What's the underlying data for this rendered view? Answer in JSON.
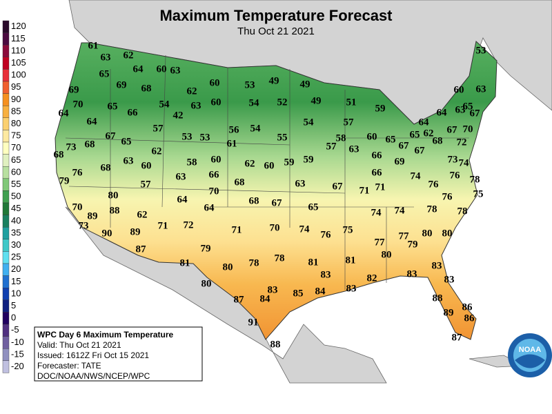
{
  "header": {
    "title": "Maximum Temperature Forecast",
    "subtitle": "Thu Oct 21 2021"
  },
  "legend": {
    "labels": [
      120,
      115,
      110,
      105,
      100,
      95,
      90,
      85,
      80,
      75,
      70,
      65,
      60,
      55,
      50,
      45,
      40,
      35,
      30,
      25,
      20,
      15,
      10,
      5,
      0,
      -5,
      -10,
      -15,
      -20
    ],
    "colors": [
      "#2a0a2a",
      "#4b0a40",
      "#8b0a3a",
      "#c00020",
      "#e8303a",
      "#f06030",
      "#f59020",
      "#f8b040",
      "#fbd070",
      "#fde9a0",
      "#ffffc0",
      "#e0f0c0",
      "#b8e0a0",
      "#80c878",
      "#40a050",
      "#207838",
      "#1a8060",
      "#20a0a0",
      "#40c8c8",
      "#60e0f0",
      "#40b0f0",
      "#2070d0",
      "#1040b0",
      "#102080",
      "#200060",
      "#503080",
      "#7060a0",
      "#9090c0",
      "#c0c0e0"
    ]
  },
  "map": {
    "temperatures": [
      61,
      63,
      62,
      53,
      64,
      60,
      63,
      65,
      49,
      53,
      49,
      69,
      69,
      68,
      62,
      60,
      60,
      63,
      70,
      65,
      54,
      63,
      60,
      54,
      52,
      49,
      51,
      59,
      65,
      64,
      66,
      42,
      64,
      63,
      67,
      64,
      54,
      57,
      64,
      57,
      56,
      54,
      67,
      70,
      67,
      53,
      53,
      55,
      58,
      60,
      65,
      62,
      65,
      73,
      68,
      65,
      61,
      57,
      63,
      67,
      68,
      72,
      68,
      62,
      63,
      60,
      58,
      62,
      60,
      59,
      59,
      66,
      69,
      73,
      74,
      67,
      76,
      68,
      60,
      66,
      66,
      74,
      76,
      79,
      63,
      68,
      63,
      67,
      71,
      71,
      76,
      78,
      57,
      70,
      80,
      64,
      68,
      67,
      76,
      75,
      70,
      88,
      64,
      65,
      74,
      74,
      78,
      78,
      89,
      62,
      73,
      71,
      72,
      71,
      70,
      74,
      76,
      75,
      90,
      89,
      80,
      80,
      77,
      77,
      79,
      87,
      79,
      80,
      78,
      81,
      78,
      81,
      83,
      81,
      80,
      83,
      82,
      83,
      80,
      83,
      83,
      83,
      87,
      84,
      85,
      84,
      88,
      86,
      89,
      86,
      91,
      88,
      87
    ]
  },
  "info_box": {
    "lines": [
      "WPC Day 6 Maximum Temperature",
      "Valid: Thu Oct 21 2021",
      "Issued: 1612Z Fri Oct 15 2021",
      "Forecaster: TATE",
      "DOC/NOAA/NWS/NCEP/WPC"
    ]
  },
  "logo": {
    "text": "NOAA"
  }
}
